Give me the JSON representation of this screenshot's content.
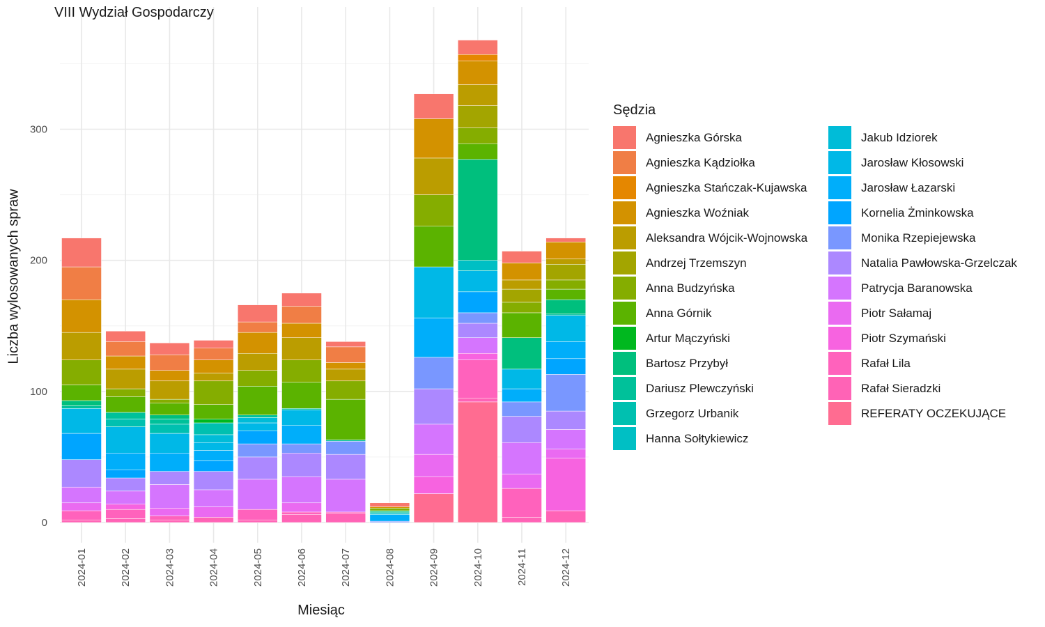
{
  "chart_data": {
    "type": "bar",
    "stacked": true,
    "title": "VIII Wydział Gospodarczy",
    "xlabel": "Miesiąc",
    "ylabel": "Liczba wylosowanych spraw",
    "ylim": [
      0,
      380
    ],
    "yticks": [
      0,
      100,
      200,
      300
    ],
    "grid": true,
    "legend_title": "Sędzia",
    "legend_position": "right",
    "categories": [
      "2024-01",
      "2024-02",
      "2024-03",
      "2024-04",
      "2024-05",
      "2024-06",
      "2024-07",
      "2024-08",
      "2024-09",
      "2024-10",
      "2024-11",
      "2024-12"
    ],
    "series": [
      {
        "name": "REFERATY OCZEKUJĄCE",
        "color": "#FF6C91",
        "values": [
          0,
          0,
          0,
          0,
          0,
          0,
          0,
          0,
          22,
          92,
          0,
          0
        ]
      },
      {
        "name": "Rafał Sieradzki",
        "color": "#FF63B6",
        "values": [
          2,
          3,
          2,
          4,
          2,
          6,
          7,
          0,
          0,
          3,
          4,
          9
        ]
      },
      {
        "name": "Rafał Lila",
        "color": "#FF62BC",
        "values": [
          7,
          7,
          3,
          0,
          8,
          2,
          1,
          0,
          0,
          29,
          22,
          0
        ]
      },
      {
        "name": "Piotr Szymański",
        "color": "#F763E0",
        "values": [
          0,
          4,
          0,
          0,
          0,
          0,
          0,
          0,
          13,
          5,
          0,
          40
        ]
      },
      {
        "name": "Piotr Sałamaj",
        "color": "#EA6AF1",
        "values": [
          6,
          0,
          6,
          8,
          0,
          7,
          0,
          0,
          17,
          0,
          11,
          7
        ]
      },
      {
        "name": "Patrycja Baranowska",
        "color": "#D575FE",
        "values": [
          12,
          10,
          18,
          13,
          23,
          20,
          25,
          0,
          23,
          12,
          24,
          15
        ]
      },
      {
        "name": "Natalia Pawłowska-Grzelczak",
        "color": "#AC88FF",
        "values": [
          21,
          10,
          10,
          14,
          17,
          18,
          19,
          0,
          27,
          11,
          20,
          14
        ]
      },
      {
        "name": "Monika Rzepiejewska",
        "color": "#7997FF",
        "values": [
          0,
          0,
          0,
          0,
          10,
          7,
          10,
          1,
          24,
          8,
          11,
          28
        ]
      },
      {
        "name": "Kornelia Żminkowska",
        "color": "#00A5FF",
        "values": [
          20,
          6,
          0,
          8,
          10,
          0,
          0,
          0,
          0,
          16,
          0,
          12
        ]
      },
      {
        "name": "Jarosław Łazarski",
        "color": "#00AEFA",
        "values": [
          0,
          13,
          14,
          8,
          0,
          14,
          0,
          5,
          30,
          0,
          10,
          13
        ]
      },
      {
        "name": "Jarosław Kłosowski",
        "color": "#00B8E7",
        "values": [
          19,
          20,
          15,
          6,
          6,
          12,
          0,
          0,
          39,
          16,
          15,
          20
        ]
      },
      {
        "name": "Jakub Idziorek",
        "color": "#00BCD8",
        "values": [
          0,
          0,
          0,
          6,
          4,
          0,
          0,
          1,
          0,
          0,
          0,
          0
        ]
      },
      {
        "name": "Hanna Sołtykiewicz",
        "color": "#00BFC4",
        "values": [
          0,
          0,
          0,
          0,
          0,
          0,
          0,
          0,
          0,
          8,
          0,
          0
        ]
      },
      {
        "name": "Grzegorz Urbanik",
        "color": "#00C0B0",
        "values": [
          0,
          6,
          7,
          9,
          0,
          0,
          0,
          0,
          0,
          0,
          0,
          0
        ]
      },
      {
        "name": "Dariusz Plewczyński",
        "color": "#00C19A",
        "values": [
          2,
          5,
          4,
          0,
          2,
          1,
          1,
          1,
          0,
          0,
          0,
          1
        ]
      },
      {
        "name": "Bartosz Przybył",
        "color": "#00BF7D",
        "values": [
          4,
          0,
          3,
          0,
          0,
          0,
          0,
          1,
          0,
          77,
          24,
          11
        ]
      },
      {
        "name": "Artur Mączyński",
        "color": "#00B81F",
        "values": [
          0,
          0,
          0,
          3,
          0,
          0,
          0,
          0,
          0,
          0,
          0,
          0
        ]
      },
      {
        "name": "Anna Górnik",
        "color": "#5BB300",
        "values": [
          12,
          12,
          9,
          11,
          22,
          20,
          31,
          0,
          31,
          12,
          19,
          8
        ]
      },
      {
        "name": "Anna Budzyńska",
        "color": "#85AD00",
        "values": [
          19,
          6,
          3,
          18,
          12,
          17,
          14,
          2,
          24,
          12,
          8,
          7
        ]
      },
      {
        "name": "Andrzej Trzemszyn",
        "color": "#A3A500",
        "values": [
          0,
          0,
          0,
          0,
          0,
          0,
          0,
          0,
          0,
          17,
          10,
          12
        ]
      },
      {
        "name": "Aleksandra Wójcik-Wojnowska",
        "color": "#BB9D00",
        "values": [
          21,
          15,
          14,
          6,
          13,
          17,
          9,
          0,
          28,
          16,
          7,
          4
        ]
      },
      {
        "name": "Agnieszka Woźniak",
        "color": "#D39200",
        "values": [
          25,
          10,
          8,
          10,
          16,
          11,
          5,
          1,
          30,
          18,
          13,
          13
        ]
      },
      {
        "name": "Agnieszka Stańczak-Kujawska",
        "color": "#E58700",
        "values": [
          0,
          0,
          0,
          0,
          0,
          0,
          0,
          0,
          0,
          5,
          0,
          0
        ]
      },
      {
        "name": "Agnieszka Kądziołka",
        "color": "#F07E45",
        "values": [
          25,
          11,
          12,
          9,
          8,
          13,
          12,
          0,
          0,
          0,
          0,
          0
        ]
      },
      {
        "name": "Agnieszka Górska",
        "color": "#F8766D",
        "values": [
          22,
          8,
          9,
          6,
          13,
          10,
          4,
          3,
          19,
          11,
          9,
          3
        ]
      }
    ]
  },
  "legend": {
    "left": [
      {
        "name": "Agnieszka Górska",
        "color": "#F8766D"
      },
      {
        "name": "Agnieszka Kądziołka",
        "color": "#F07E45"
      },
      {
        "name": "Agnieszka Stańczak-Kujawska",
        "color": "#E58700"
      },
      {
        "name": "Agnieszka Woźniak",
        "color": "#D39200"
      },
      {
        "name": "Aleksandra Wójcik-Wojnowska",
        "color": "#BB9D00"
      },
      {
        "name": "Andrzej Trzemszyn",
        "color": "#A3A500"
      },
      {
        "name": "Anna Budzyńska",
        "color": "#85AD00"
      },
      {
        "name": "Anna Górnik",
        "color": "#5BB300"
      },
      {
        "name": "Artur Mączyński",
        "color": "#00B81F"
      },
      {
        "name": "Bartosz Przybył",
        "color": "#00BF7D"
      },
      {
        "name": "Dariusz Plewczyński",
        "color": "#00C19A"
      },
      {
        "name": "Grzegorz Urbanik",
        "color": "#00C0B0"
      },
      {
        "name": "Hanna Sołtykiewicz",
        "color": "#00BFC4"
      }
    ],
    "right": [
      {
        "name": "Jakub Idziorek",
        "color": "#00BCD8"
      },
      {
        "name": "Jarosław Kłosowski",
        "color": "#00B8E7"
      },
      {
        "name": "Jarosław Łazarski",
        "color": "#00AEFA"
      },
      {
        "name": "Kornelia Żminkowska",
        "color": "#00A5FF"
      },
      {
        "name": "Monika Rzepiejewska",
        "color": "#7997FF"
      },
      {
        "name": "Natalia Pawłowska-Grzelczak",
        "color": "#AC88FF"
      },
      {
        "name": "Patrycja Baranowska",
        "color": "#D575FE"
      },
      {
        "name": "Piotr Sałamaj",
        "color": "#EA6AF1"
      },
      {
        "name": "Piotr Szymański",
        "color": "#F763E0"
      },
      {
        "name": "Rafał Lila",
        "color": "#FF62BC"
      },
      {
        "name": "Rafał Sieradzki",
        "color": "#FF63B6"
      },
      {
        "name": "REFERATY OCZEKUJĄCE",
        "color": "#FF6C91"
      }
    ]
  }
}
